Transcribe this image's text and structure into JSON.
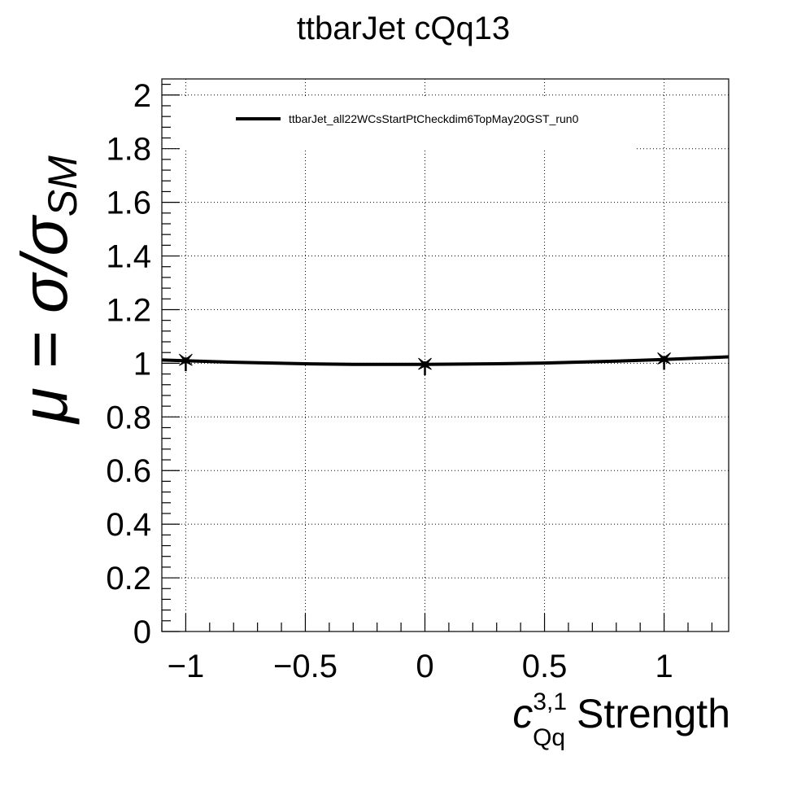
{
  "chart_data": {
    "type": "line",
    "title": "ttbarJet cQq13",
    "xlabel": {
      "symbol": "c",
      "superscript": "3,1",
      "subscript": "Qq",
      "suffix": " Strength"
    },
    "ylabel": {
      "prefix": "μ = σ/σ",
      "subscript": "SM"
    },
    "xlim": [
      -1.1,
      1.27
    ],
    "ylim": [
      0,
      2.06
    ],
    "x_ticks": [
      -1,
      -0.5,
      0,
      0.5,
      1
    ],
    "x_tick_labels": [
      "−1",
      "−0.5",
      "0",
      "0.5",
      "1"
    ],
    "y_ticks": [
      0,
      0.2,
      0.4,
      0.6,
      0.8,
      1,
      1.2,
      1.4,
      1.6,
      1.8,
      2
    ],
    "y_tick_labels": [
      "0",
      "0.2",
      "0.4",
      "0.6",
      "0.8",
      "1",
      "1.2",
      "1.4",
      "1.6",
      "1.8",
      "2"
    ],
    "grid": true,
    "legend_position": "top",
    "series": [
      {
        "name": "ttbarJet_all22WCsStartPtCheckdim6TopMay20GST_run0",
        "kind": "fit-curve",
        "color": "#000000",
        "x": [
          -1.1,
          -0.8,
          -0.5,
          -0.3,
          0,
          0.3,
          0.5,
          0.8,
          1,
          1.27
        ],
        "y": [
          1.012,
          1.004,
          0.998,
          0.996,
          0.996,
          0.998,
          1.001,
          1.008,
          1.014,
          1.024
        ]
      },
      {
        "name": "",
        "kind": "points",
        "color": "#000000",
        "x": [
          -1,
          0,
          1
        ],
        "y": [
          1.01,
          0.995,
          1.015
        ]
      }
    ]
  }
}
